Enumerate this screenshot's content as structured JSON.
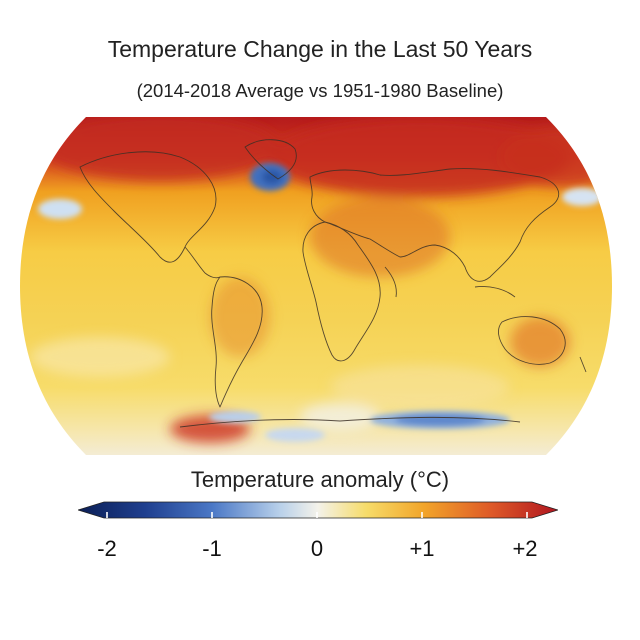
{
  "title": "Temperature Change in the Last 50 Years",
  "subtitle": "(2014-2018 Average vs 1951-1980 Baseline)",
  "legend": {
    "title": "Temperature anomaly (°C)",
    "range": [
      -2,
      2
    ],
    "ticks": [
      "-2",
      "-1",
      "0",
      "+1",
      "+2"
    ],
    "colors": [
      "#0b1f56",
      "#2b5cb0",
      "#8fb7e3",
      "#f2f2ee",
      "#f5d35a",
      "#f2a22a",
      "#e2632a",
      "#b3161f"
    ]
  }
}
